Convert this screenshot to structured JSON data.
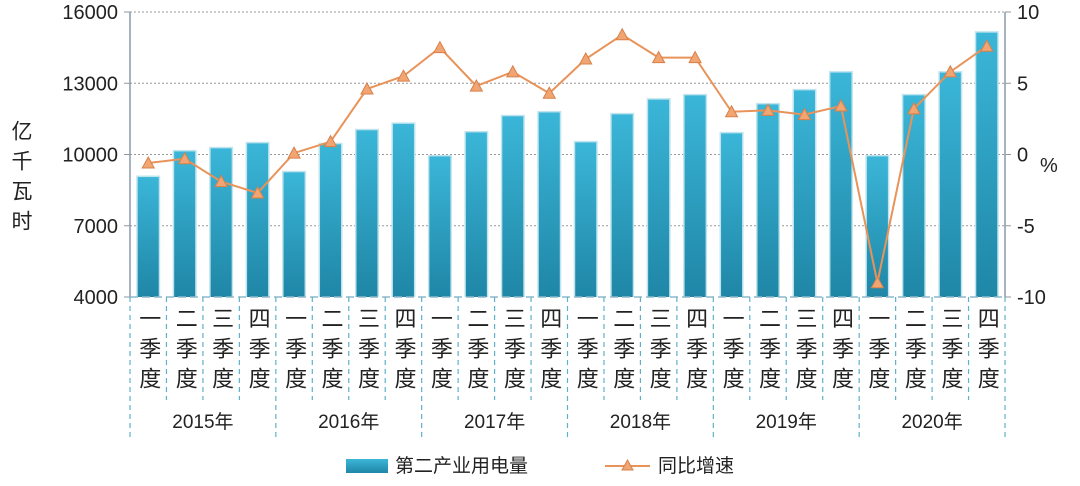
{
  "chart_data": {
    "type": "bar+line",
    "categories_quarter": [
      "一季度",
      "二季度",
      "三季度",
      "四季度"
    ],
    "years": [
      "2015年",
      "2016年",
      "2017年",
      "2018年",
      "2019年",
      "2020年"
    ],
    "left_axis": {
      "label": "亿千瓦时",
      "ylim": [
        4000,
        16000
      ],
      "ticks": [
        4000,
        7000,
        10000,
        13000,
        16000
      ]
    },
    "right_axis": {
      "label": "%",
      "ylim": [
        -10,
        10
      ],
      "ticks": [
        -10,
        -5,
        0,
        5,
        10
      ]
    },
    "grid": true,
    "legend_position": "bottom",
    "series": [
      {
        "name": "第二产业用电量",
        "type": "bar",
        "axis": "left",
        "color": "#2aa3c4",
        "values": [
          9050,
          10130,
          10260,
          10470,
          9250,
          10430,
          11020,
          11290,
          9920,
          10930,
          11610,
          11770,
          10510,
          11690,
          12310,
          12490,
          10890,
          12110,
          12700,
          13450,
          9920,
          12490,
          13450,
          15130
        ]
      },
      {
        "name": "同比增速",
        "type": "line",
        "axis": "right",
        "color": "#e8935a",
        "values": [
          -0.6,
          -0.3,
          -1.9,
          -2.7,
          0.1,
          0.9,
          4.6,
          5.5,
          7.5,
          4.8,
          5.8,
          4.3,
          6.7,
          8.4,
          6.8,
          6.8,
          3.0,
          3.1,
          2.8,
          3.4,
          -9.0,
          3.2,
          5.8,
          7.6
        ]
      }
    ]
  }
}
